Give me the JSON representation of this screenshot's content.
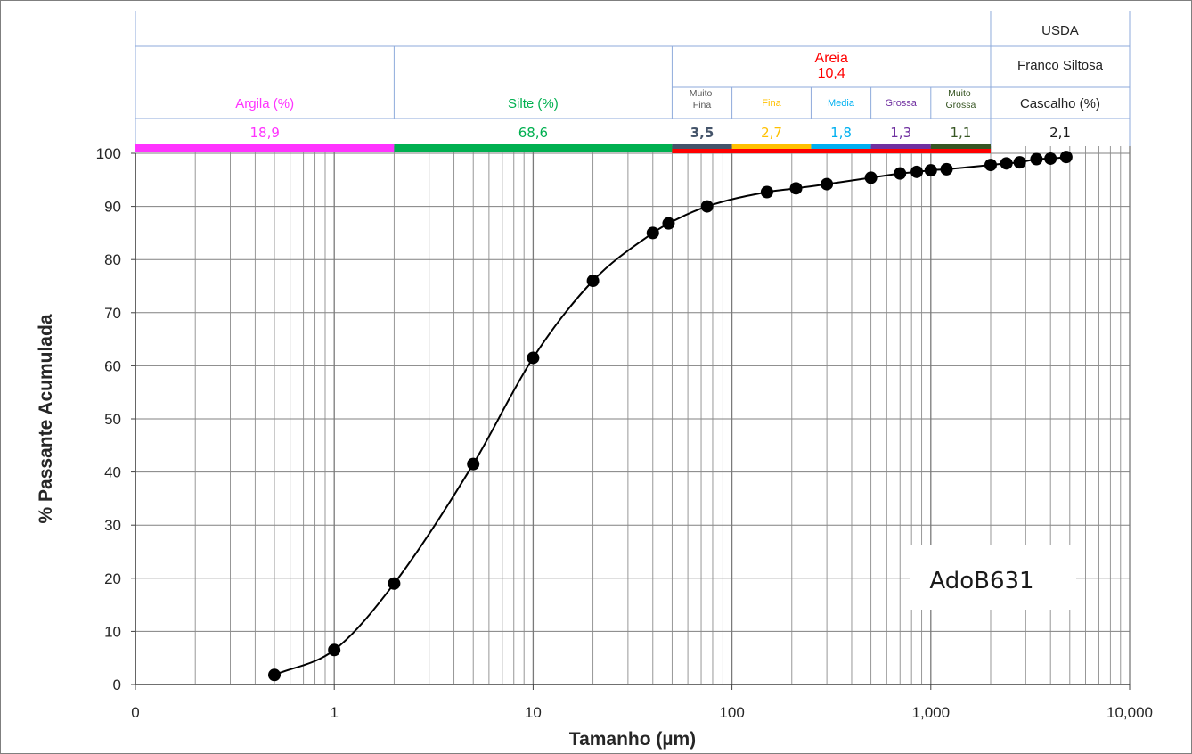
{
  "chart_data": {
    "type": "scatter",
    "xlabel": "Tamanho (µm)",
    "ylabel": "% Passante Acumulada",
    "x_scale": "log",
    "xlim": [
      0.1,
      10000
    ],
    "ylim": [
      0,
      100
    ],
    "grid": true,
    "x_tick_labels": [
      "0",
      "1",
      "10",
      "100",
      "1,000",
      "10,000"
    ],
    "x_tick_values": [
      0.1,
      1,
      10,
      100,
      1000,
      10000
    ],
    "y_ticks": [
      0,
      10,
      20,
      30,
      40,
      50,
      60,
      70,
      80,
      90,
      100
    ],
    "annotation": "AdoB631",
    "series": [
      {
        "x": [
          0.5,
          1,
          2,
          5,
          10,
          20,
          40,
          48,
          75,
          150,
          210,
          300,
          500,
          700,
          850,
          1000,
          1200,
          2000,
          2400,
          2800,
          3400,
          4000,
          4800
        ],
        "y": [
          1.8,
          6.5,
          19,
          41.5,
          61.5,
          76,
          85,
          86.8,
          90,
          92.7,
          93.4,
          94.2,
          95.4,
          96.2,
          96.5,
          96.8,
          97,
          97.8,
          98.1,
          98.3,
          98.9,
          99,
          99.3
        ]
      }
    ],
    "classification": {
      "system": "USDA",
      "texture": "Franco Siltosa",
      "fractions": [
        {
          "label": "Argila (%)",
          "value": "18,9",
          "x_from": 0.1,
          "x_to": 2,
          "color": "#ff33ff"
        },
        {
          "label": "Silte (%)",
          "value": "68,6",
          "x_from": 2,
          "x_to": 50,
          "color": "#00b050"
        },
        {
          "label": "Cascalho (%)",
          "value": "2,1",
          "x_from": 2000,
          "x_to": 10000,
          "color": "#1a1a1a"
        }
      ],
      "sand": {
        "label": "Areia",
        "value": "10,4",
        "color": "#ff0000",
        "x_from": 50,
        "x_to": 2000,
        "subclasses": [
          {
            "label": "Muito Fina",
            "value": "3,5",
            "x_from": 50,
            "x_to": 100,
            "color": "#44546a"
          },
          {
            "label": "Fina",
            "value": "2,7",
            "x_from": 100,
            "x_to": 250,
            "color": "#ffc000"
          },
          {
            "label": "Media",
            "value": "1,8",
            "x_from": 250,
            "x_to": 500,
            "color": "#00b0f0"
          },
          {
            "label": "Grossa",
            "value": "1,3",
            "x_from": 500,
            "x_to": 1000,
            "color": "#7030a0"
          },
          {
            "label": "Muito Grossa",
            "value": "1,1",
            "x_from": 1000,
            "x_to": 2000,
            "color": "#375623"
          }
        ]
      }
    }
  }
}
